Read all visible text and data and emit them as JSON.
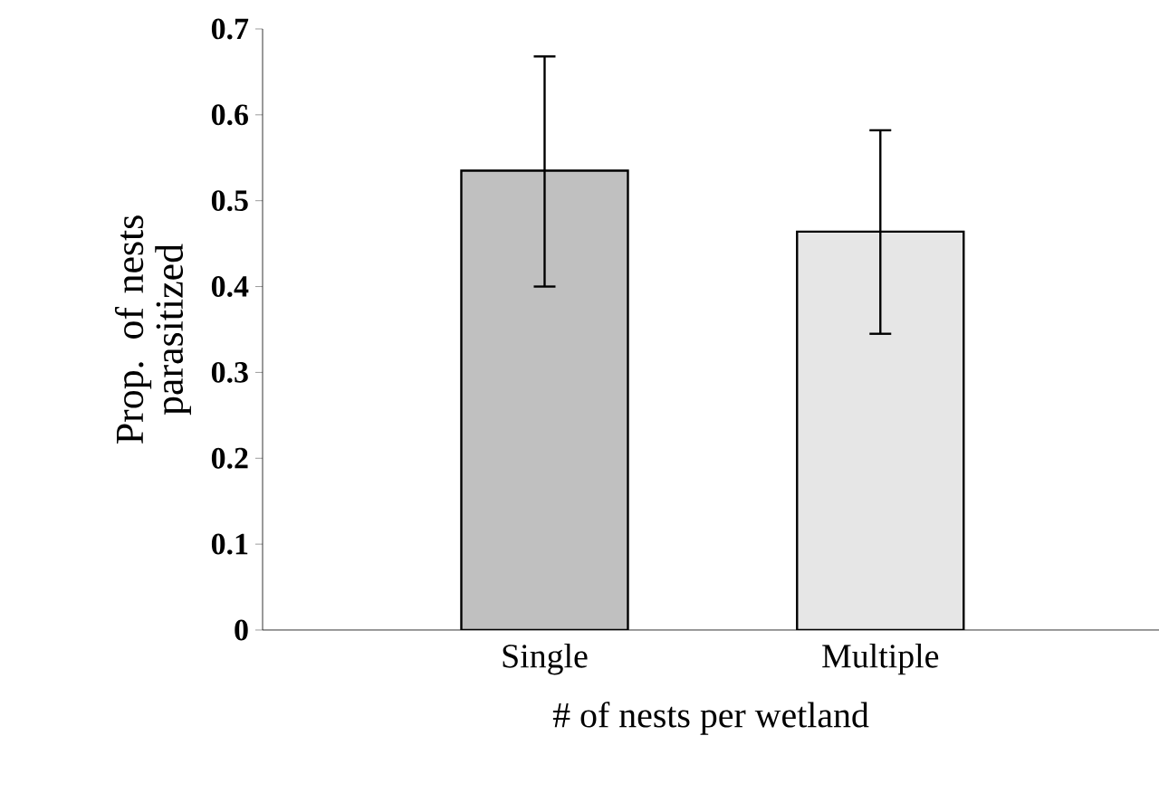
{
  "chart_data": {
    "type": "bar",
    "xlabel": "# of nests per wetland",
    "ylabel": "Prop. of nests parasitized",
    "categories": [
      "Single",
      "Multiple"
    ],
    "values": [
      0.535,
      0.464
    ],
    "errors": [
      [
        0.4,
        0.668
      ],
      [
        0.345,
        0.582
      ]
    ],
    "colors": [
      "#c0c0c0",
      "#e6e6e6"
    ],
    "ylim": [
      0,
      0.7
    ],
    "yticks": [
      0,
      0.1,
      0.2,
      0.3,
      0.4,
      0.5,
      0.6,
      0.7
    ],
    "grid": false
  }
}
